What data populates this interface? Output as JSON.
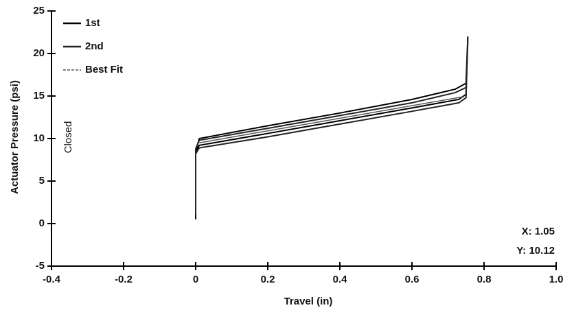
{
  "chart_data": {
    "type": "line",
    "xlabel": "Travel (in)",
    "ylabel": "Actuator Pressure (psi)",
    "xlim": [
      -0.4,
      1.0
    ],
    "xticks": [
      -0.4,
      -0.2,
      0,
      0.2,
      0.4,
      0.6,
      0.8,
      {
        "value": 1,
        "label": "1.0"
      }
    ],
    "ylim": [
      -5,
      25
    ],
    "yticks": [
      -5,
      0,
      5,
      10,
      15,
      20,
      25
    ],
    "legend": "upper left",
    "annotations": [
      "Closed",
      "X: 1.05",
      "Y: 10.12"
    ],
    "series": [
      {
        "name": "1st",
        "color": "#000000",
        "x": [
          0,
          0,
          0.01,
          0.2,
          0.4,
          0.6,
          0.72,
          0.75,
          0.755,
          0.75,
          0.73,
          0.6,
          0.4,
          0.2,
          0.01,
          0,
          0
        ],
        "values": [
          0.5,
          8.5,
          10,
          11.5,
          13,
          14.6,
          15.8,
          16.5,
          22,
          15.2,
          14.6,
          13.6,
          12.1,
          10.6,
          9.2,
          8.5,
          0.5
        ]
      },
      {
        "name": "2nd",
        "color": "#222222",
        "x": [
          0,
          0,
          0.01,
          0.2,
          0.4,
          0.6,
          0.72,
          0.75,
          0.755,
          0.75,
          0.73,
          0.6,
          0.4,
          0.2,
          0.01,
          0,
          0
        ],
        "values": [
          1,
          8.8,
          9.8,
          11.2,
          12.7,
          14.2,
          15.4,
          16,
          21.5,
          14.8,
          14.2,
          13.2,
          11.7,
          10.2,
          8.9,
          8.2,
          1
        ]
      },
      {
        "name": "Best Fit",
        "color": "#555555",
        "x": [
          0.01,
          0.74
        ],
        "values": [
          9.5,
          14.9
        ]
      }
    ]
  }
}
